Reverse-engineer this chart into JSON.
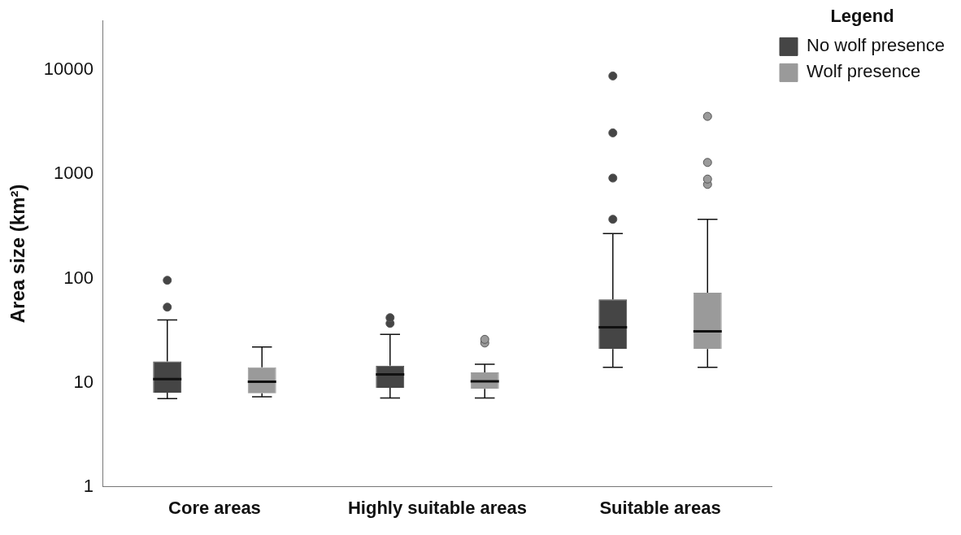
{
  "chart_data": {
    "type": "box",
    "ylabel": "Area size (km²)",
    "legend_title": "Legend",
    "legend": "top right",
    "log": "y",
    "grid": false,
    "categories": [
      "Core areas",
      "Highly suitable areas",
      "Suitable areas"
    ],
    "ylim": [
      1,
      30000
    ],
    "yticks": [
      1,
      10,
      100,
      1000,
      10000
    ],
    "series": [
      {
        "name": "No wolf presence",
        "color": "#454545",
        "boxes": [
          {
            "low": 7,
            "q1": 8,
            "median": 10.8,
            "q3": 16,
            "high": 40,
            "outliers": [
              53,
              96
            ]
          },
          {
            "low": 7.1,
            "q1": 8.9,
            "median": 12,
            "q3": 14.5,
            "high": 29,
            "outliers": [
              37,
              42
            ]
          },
          {
            "low": 14,
            "q1": 21,
            "median": 34,
            "q3": 63,
            "high": 270,
            "outliers": [
              370,
              920,
              2500,
              8800
            ]
          }
        ]
      },
      {
        "name": "Wolf presence",
        "color": "#9a9a9a",
        "boxes": [
          {
            "low": 7.3,
            "q1": 7.9,
            "median": 10.2,
            "q3": 14,
            "high": 22
          },
          {
            "low": 7.1,
            "q1": 8.7,
            "median": 10.3,
            "q3": 12.5,
            "high": 15,
            "outliers": [
              24,
              26
            ]
          },
          {
            "low": 14,
            "q1": 21,
            "median": 31,
            "q3": 73,
            "high": 370,
            "outliers": [
              800,
              900,
              1300,
              3600
            ]
          }
        ]
      }
    ]
  }
}
